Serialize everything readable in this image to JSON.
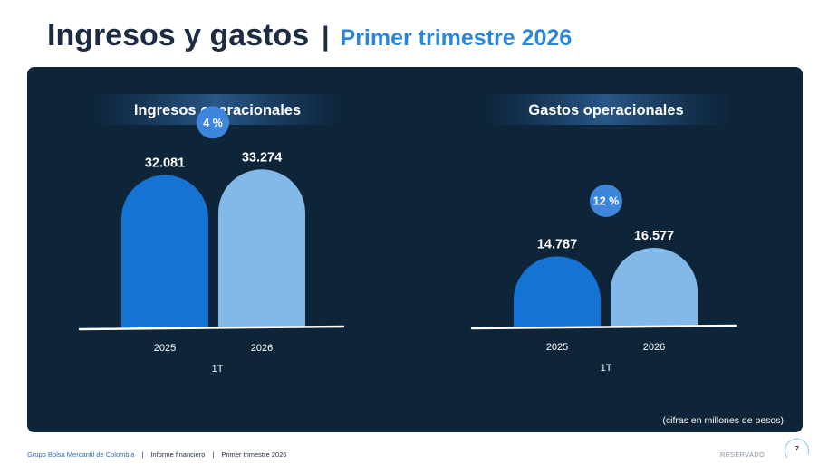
{
  "header": {
    "title": "Ingresos y gastos",
    "separator": "|",
    "subtitle": "Primer trimestre 2026"
  },
  "colors": {
    "panel_bg": "#0e2438",
    "bar_2025": "#1473d3",
    "bar_2026": "#82b9e8",
    "badge": "#3e86dc",
    "title_dark": "#1e2c43",
    "accent": "#2a86d8"
  },
  "chart_data": [
    {
      "type": "bar",
      "title": "Ingresos operacionales",
      "categories": [
        "2025",
        "2026"
      ],
      "group_label": "1T",
      "values": [
        32.081,
        33.274
      ],
      "value_labels": [
        "32.081",
        "33.274"
      ],
      "change_label": "4 %",
      "ylim": [
        0,
        40
      ]
    },
    {
      "type": "bar",
      "title": "Gastos operacionales",
      "categories": [
        "2025",
        "2026"
      ],
      "group_label": "1T",
      "values": [
        14.787,
        16.577
      ],
      "value_labels": [
        "14.787",
        "16.577"
      ],
      "change_label": "12 %",
      "ylim": [
        0,
        40
      ]
    }
  ],
  "note": "(cifras en millones de pesos)",
  "footer": {
    "company": "Grupo Bolsa Mercantil de Colombia",
    "separator": "|",
    "report": "Informe financiero",
    "period": "Primer trimestre 2026",
    "classification": "RESERVADO",
    "page_number": "7"
  }
}
